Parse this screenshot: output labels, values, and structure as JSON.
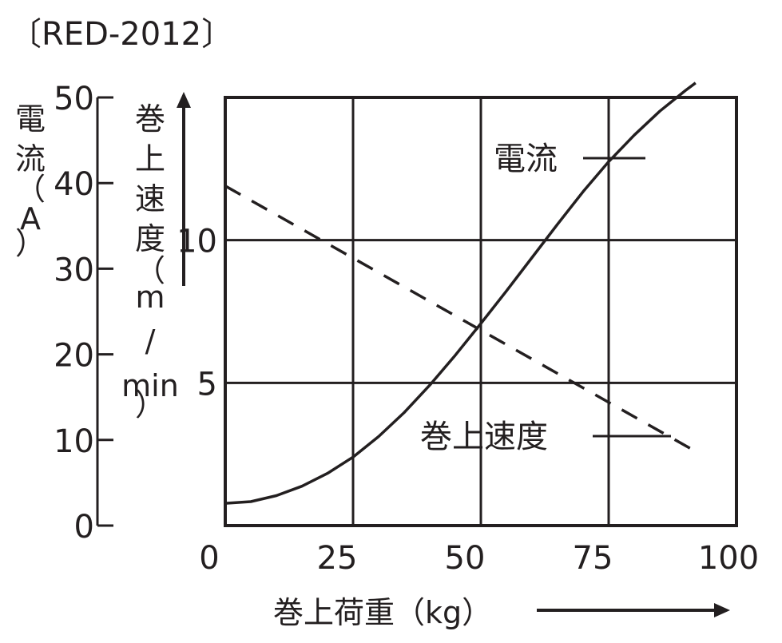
{
  "model_label": "〔RED-2012〕",
  "chart_data": {
    "type": "line",
    "xlabel": "巻上荷重（kg）",
    "xlim": [
      0,
      100
    ],
    "x_ticks": [
      0,
      25,
      50,
      75,
      100
    ],
    "y_left": {
      "label_chars": [
        "電",
        "流",
        "（",
        "A",
        "）"
      ],
      "lim": [
        0,
        50
      ],
      "ticks": [
        0,
        10,
        20,
        30,
        40,
        50
      ]
    },
    "y_right": {
      "label_chars": [
        "巻",
        "上",
        "速",
        "度",
        "（",
        "m",
        "/",
        "min",
        "）"
      ],
      "lim": [
        0,
        15
      ],
      "ticks": [
        5,
        10
      ]
    },
    "grid": true,
    "series": [
      {
        "name": "電流",
        "axis": "left",
        "style": "solid",
        "x": [
          0,
          5,
          10,
          15,
          20,
          25,
          30,
          35,
          40,
          45,
          50,
          55,
          60,
          65,
          70,
          75,
          80,
          85,
          90,
          92
        ],
        "y": [
          2.6,
          2.8,
          3.5,
          4.6,
          6.1,
          8.0,
          10.4,
          13.2,
          16.4,
          19.9,
          23.6,
          27.4,
          31.3,
          35.2,
          39.0,
          42.5,
          45.6,
          48.4,
          50.8,
          51.7
        ]
      },
      {
        "name": "巻上速度",
        "axis": "right",
        "style": "dashed",
        "x": [
          0,
          92
        ],
        "y": [
          11.9,
          2.6
        ]
      }
    ]
  }
}
